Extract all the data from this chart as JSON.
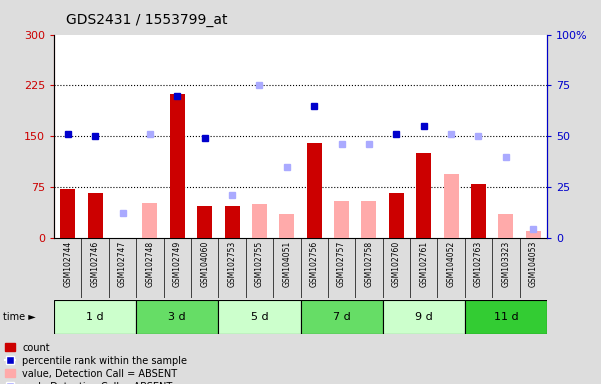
{
  "title": "GDS2431 / 1553799_at",
  "samples": [
    "GSM102744",
    "GSM102746",
    "GSM102747",
    "GSM102748",
    "GSM102749",
    "GSM104060",
    "GSM102753",
    "GSM102755",
    "GSM104051",
    "GSM102756",
    "GSM102757",
    "GSM102758",
    "GSM102760",
    "GSM102761",
    "GSM104052",
    "GSM102763",
    "GSM103323",
    "GSM104053"
  ],
  "time_groups": [
    {
      "label": "1 d",
      "start": 0,
      "end": 3,
      "color": "#ccffcc"
    },
    {
      "label": "3 d",
      "start": 3,
      "end": 6,
      "color": "#66dd66"
    },
    {
      "label": "5 d",
      "start": 6,
      "end": 9,
      "color": "#ccffcc"
    },
    {
      "label": "7 d",
      "start": 9,
      "end": 12,
      "color": "#66dd66"
    },
    {
      "label": "9 d",
      "start": 12,
      "end": 15,
      "color": "#ccffcc"
    },
    {
      "label": "11 d",
      "start": 15,
      "end": 18,
      "color": "#33cc33"
    }
  ],
  "count_values": [
    72,
    67,
    0,
    0,
    213,
    47,
    47,
    0,
    0,
    140,
    0,
    0,
    67,
    125,
    0,
    80,
    0,
    0
  ],
  "absent_value_values": [
    0,
    0,
    0,
    52,
    0,
    0,
    0,
    50,
    35,
    0,
    55,
    55,
    0,
    0,
    95,
    0,
    35,
    10
  ],
  "percentile_rank_values": [
    153,
    150,
    0,
    0,
    210,
    147,
    0,
    0,
    0,
    195,
    0,
    0,
    153,
    165,
    0,
    0,
    0,
    0
  ],
  "absent_rank_values": [
    0,
    0,
    37,
    153,
    0,
    0,
    63,
    225,
    105,
    0,
    138,
    138,
    0,
    0,
    153,
    150,
    120,
    13
  ],
  "count_color": "#cc0000",
  "absent_value_color": "#ffaaaa",
  "percentile_rank_color": "#0000cc",
  "absent_rank_color": "#aaaaff",
  "ylim_left": [
    0,
    300
  ],
  "ylim_right": [
    0,
    100
  ],
  "yticks_left": [
    0,
    75,
    150,
    225,
    300
  ],
  "ytick_labels_left": [
    "0",
    "75",
    "150",
    "225",
    "300"
  ],
  "yticks_right": [
    0,
    25,
    50,
    75,
    100
  ],
  "ytick_labels_right": [
    "0",
    "25",
    "50",
    "75",
    "100%"
  ],
  "hlines": [
    75,
    150,
    225
  ],
  "plot_bg_color": "#ffffff",
  "fig_bg_color": "#dddddd",
  "xtick_bg_color": "#cccccc"
}
